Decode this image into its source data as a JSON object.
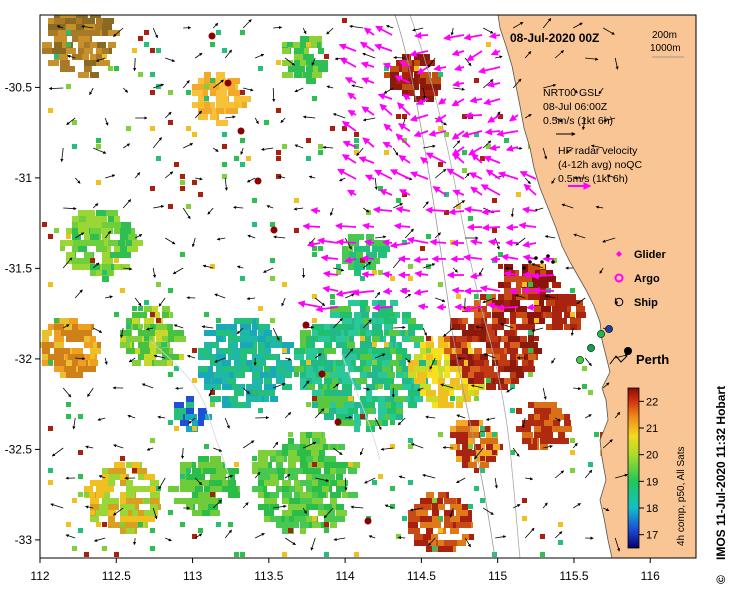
{
  "map": {
    "title": "08-Jul-2020 00Z",
    "scale_labels": [
      "200m",
      "1000m"
    ],
    "x_ticks": [
      "112",
      "112.5",
      "113",
      "113.5",
      "114",
      "114.5",
      "115",
      "115.5",
      "116"
    ],
    "y_ticks": [
      "-30.5",
      "-31",
      "-31.5",
      "-32",
      "-32.5",
      "-33"
    ],
    "lon_range": [
      112,
      116.3
    ],
    "lat_range": [
      -33.1,
      -30.1
    ],
    "city_label": "Perth",
    "credit": "IMOS 11-Jul-2020 11:32 Hobart",
    "copyright_symbol": "©",
    "colors": {
      "land": "#f9c594",
      "hf_radar_arrow": "#ff00ff",
      "glider": "#ff00ff",
      "argo": "#ff00ff",
      "ship": "#000000"
    }
  },
  "legend": {
    "gsl_lines": [
      "NRT00 GSL",
      "08-Jul 06:00Z",
      "0.5m/s (1kt 6h)"
    ],
    "hf_lines": [
      "HF radar velocity",
      "(4-12h avg) noQC",
      "0.5m/s (1kt 6h)"
    ],
    "platforms": [
      {
        "label": "Glider",
        "symbol": "diamond-icon"
      },
      {
        "label": "Argo",
        "symbol": "circle-icon"
      },
      {
        "label": "Ship",
        "symbol": "open-circle-icon"
      }
    ]
  },
  "colorbar": {
    "ticks": [
      "22",
      "21",
      "20",
      "19",
      "18",
      "17"
    ],
    "label": "4h comp, p50, All Sats"
  }
}
